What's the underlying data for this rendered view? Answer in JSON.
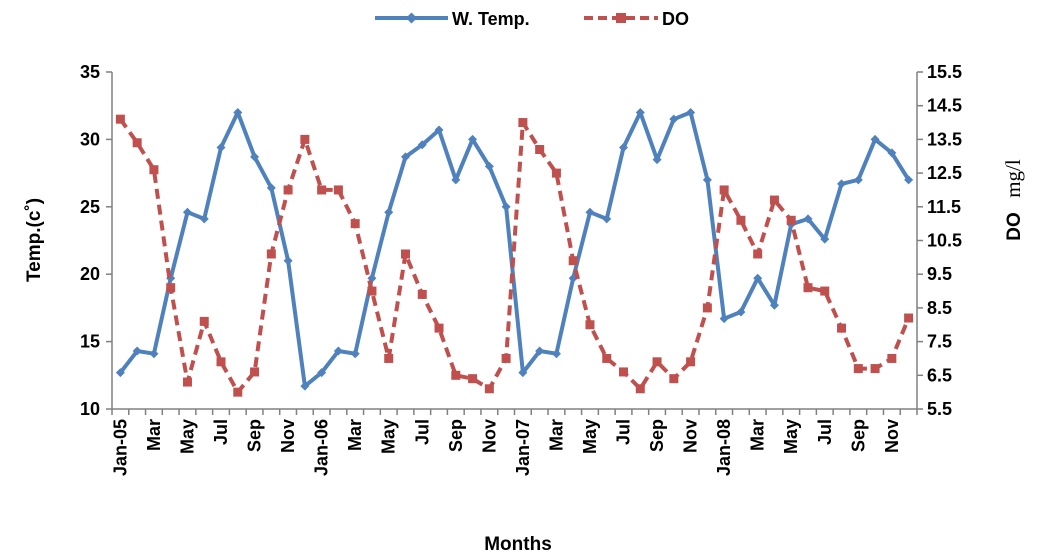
{
  "chart_data": {
    "type": "line",
    "xlabel": "Months",
    "ylabel": "Temp.(c˚)",
    "y2label_main": "DO",
    "y2label_unit": "mg/l",
    "ylim": [
      10,
      35
    ],
    "y_ticks": [
      10,
      15,
      20,
      25,
      30,
      35
    ],
    "y2lim": [
      5.5,
      15.5
    ],
    "y2_ticks": [
      "5.5",
      "6.5",
      "7.5",
      "8.5",
      "9.5",
      "10.5",
      "11.5",
      "12.5",
      "13.5",
      "14.5",
      "15.5"
    ],
    "grid": false,
    "legend_position": "top-center",
    "x_tick_labels": [
      "Jan-05",
      "",
      "Mar",
      "",
      "May",
      "",
      "Jul",
      "",
      "Sep",
      "",
      "Nov",
      "",
      "Jan-06",
      "",
      "Mar",
      "",
      "May",
      "",
      "Jul",
      "",
      "Sep",
      "",
      "Nov",
      "",
      "Jan-07",
      "",
      "Mar",
      "",
      "May",
      "",
      "Jul",
      "",
      "Sep",
      "",
      "Nov",
      "",
      "Jan-08",
      "",
      "Mar",
      "",
      "May",
      "",
      "Jul",
      "",
      "Sep",
      "",
      "Nov",
      ""
    ],
    "series": [
      {
        "name": "W. Temp.",
        "axis": "left",
        "color": "#4F81BD",
        "marker": "diamond",
        "line_style": "solid",
        "values": [
          12.7,
          14.3,
          14.1,
          19.7,
          24.6,
          24.1,
          29.4,
          32.0,
          28.7,
          26.4,
          21.0,
          11.7,
          12.7,
          14.3,
          14.1,
          19.7,
          24.6,
          28.7,
          29.6,
          30.7,
          27.0,
          30.0,
          28.0,
          25.0,
          12.7,
          14.3,
          14.1,
          19.7,
          24.6,
          24.1,
          29.4,
          32.0,
          28.5,
          31.5,
          32.0,
          27.0,
          16.7,
          17.2,
          19.7,
          17.7,
          23.7,
          24.1,
          22.6,
          26.7,
          27.0,
          30.0,
          29.0,
          27.0
        ]
      },
      {
        "name": "DO",
        "axis": "right",
        "color": "#C0504D",
        "marker": "square",
        "line_style": "dashed",
        "values": [
          14.1,
          13.4,
          12.6,
          9.1,
          6.3,
          8.1,
          6.9,
          6.0,
          6.6,
          10.1,
          12.0,
          13.5,
          12.0,
          12.0,
          11.0,
          9.0,
          7.0,
          10.1,
          8.9,
          7.9,
          6.5,
          6.4,
          6.1,
          7.0,
          14.0,
          13.2,
          12.5,
          9.9,
          8.0,
          7.0,
          6.6,
          6.1,
          6.9,
          6.4,
          6.9,
          8.5,
          12.0,
          11.1,
          10.1,
          11.7,
          11.1,
          9.1,
          9.0,
          7.9,
          6.7,
          6.7,
          7.0,
          8.2
        ]
      }
    ]
  }
}
